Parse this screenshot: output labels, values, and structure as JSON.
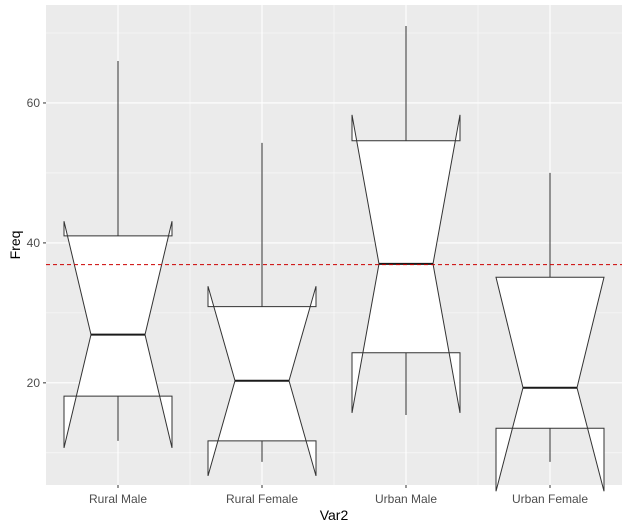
{
  "chart_data": {
    "type": "boxplot",
    "notched": true,
    "xlabel": "Var2",
    "ylabel": "Freq",
    "categories": [
      "Rural Male",
      "Rural Female",
      "Urban Male",
      "Urban Female"
    ],
    "boxes": [
      {
        "category": "Rural Male",
        "whisker_low": 11.7,
        "q1": 18.1,
        "median": 26.9,
        "q3": 41.0,
        "whisker_high": 66.0,
        "notch_low": 10.7,
        "notch_high": 43.1
      },
      {
        "category": "Rural Female",
        "whisker_low": 8.7,
        "q1": 11.7,
        "median": 20.3,
        "q3": 30.9,
        "whisker_high": 54.3,
        "notch_low": 6.7,
        "notch_high": 33.8
      },
      {
        "category": "Urban Male",
        "whisker_low": 15.4,
        "q1": 24.3,
        "median": 37.0,
        "q3": 54.6,
        "whisker_high": 71.0,
        "notch_low": 15.7,
        "notch_high": 58.3
      },
      {
        "category": "Urban Female",
        "whisker_low": 8.7,
        "q1": 13.5,
        "median": 19.3,
        "q3": 35.1,
        "whisker_high": 50.0,
        "notch_low": 4.5,
        "notch_high": 35.1
      }
    ],
    "reference_line": {
      "y": 36.9,
      "color": "#cc0000",
      "style": "dashed"
    },
    "ylim": [
      5.4,
      74.0
    ],
    "y_ticks": [
      20,
      40,
      60
    ],
    "grid": true,
    "colors": {
      "panel": "#ebebeb",
      "grid_major": "#ffffff",
      "box_fill": "#ffffff",
      "box_stroke": "#333333",
      "median": "#1a1a1a"
    }
  }
}
